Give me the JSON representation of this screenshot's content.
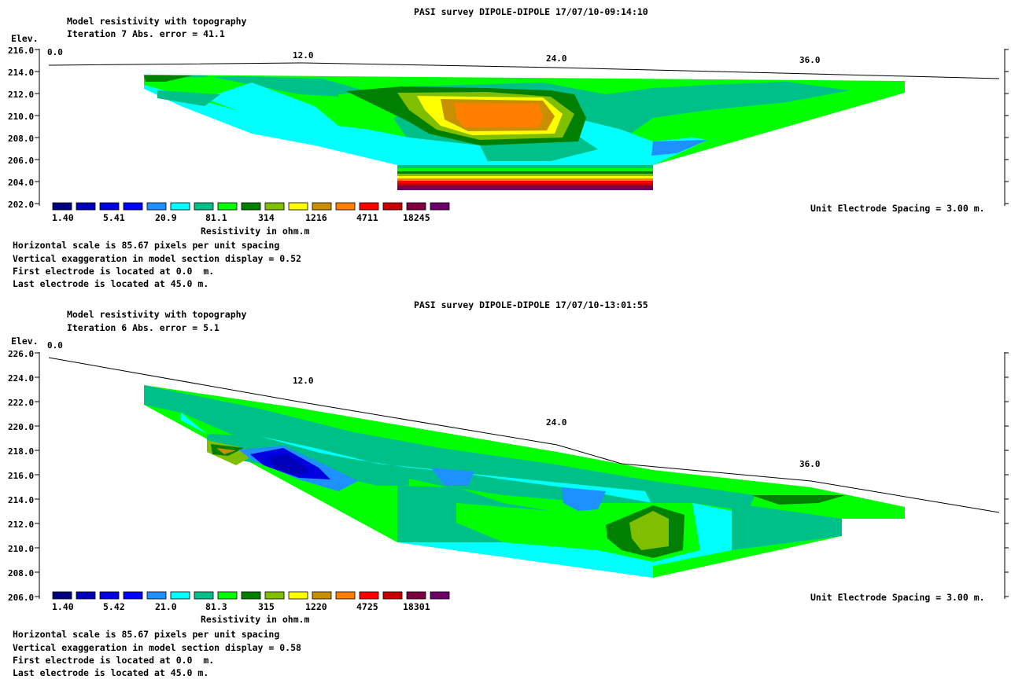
{
  "chart_data": [
    {
      "type": "contour",
      "survey_title": "PASI survey DIPOLE-DIPOLE 17/07/10-09:14:10",
      "model_title": "Model resistivity with topography",
      "iteration_text": "Iteration 7 Abs. error = 41.1",
      "y_axis_label": "Elev.",
      "y_ticks": [
        "216.0",
        "214.0",
        "212.0",
        "210.0",
        "208.0",
        "206.0",
        "204.0",
        "202.0"
      ],
      "ylim": [
        202.0,
        216.0
      ],
      "x_ticks": [
        "0.0",
        "12.0",
        "24.0",
        "36.0"
      ],
      "xlim": [
        0.0,
        45.0
      ],
      "legend_values": [
        "1.40",
        "5.41",
        "20.9",
        "81.1",
        "314",
        "1216",
        "4711",
        "18245"
      ],
      "legend_title": "Resistivity in ohm.m",
      "electrode_spacing_text": "Unit Electrode Spacing = 3.00 m.",
      "info_lines": [
        "Horizontal scale is 85.67 pixels per unit spacing",
        "Vertical exaggeration in model section display = 0.52",
        "First electrode is located at 0.0  m.",
        "Last electrode is located at 45.0 m."
      ]
    },
    {
      "type": "contour",
      "survey_title": "PASI survey DIPOLE-DIPOLE 17/07/10-13:01:55",
      "model_title": "Model resistivity with topography",
      "iteration_text": "Iteration 6 Abs. error = 5.1",
      "y_axis_label": "Elev.",
      "y_ticks": [
        "226.0",
        "224.0",
        "222.0",
        "220.0",
        "218.0",
        "216.0",
        "214.0",
        "212.0",
        "210.0",
        "208.0",
        "206.0"
      ],
      "ylim": [
        206.0,
        226.0
      ],
      "x_ticks": [
        "0.0",
        "12.0",
        "24.0",
        "36.0"
      ],
      "xlim": [
        0.0,
        45.0
      ],
      "legend_values": [
        "1.40",
        "5.42",
        "21.0",
        "81.3",
        "315",
        "1220",
        "4725",
        "18301"
      ],
      "legend_title": "Resistivity in ohm.m",
      "electrode_spacing_text": "Unit Electrode Spacing = 3.00 m.",
      "info_lines": [
        "Horizontal scale is 85.67 pixels per unit spacing",
        "Vertical exaggeration in model section display = 0.58",
        "First electrode is located at 0.0  m.",
        "Last electrode is located at 45.0 m."
      ]
    }
  ],
  "palette": [
    "#00007f",
    "#0000b8",
    "#0000e0",
    "#0000ff",
    "#1e90ff",
    "#00ffff",
    "#00c08a",
    "#00ff00",
    "#007f00",
    "#7fbf00",
    "#ffff00",
    "#c89000",
    "#ff8000",
    "#ff0000",
    "#c80000",
    "#7f0040",
    "#6b006b"
  ]
}
